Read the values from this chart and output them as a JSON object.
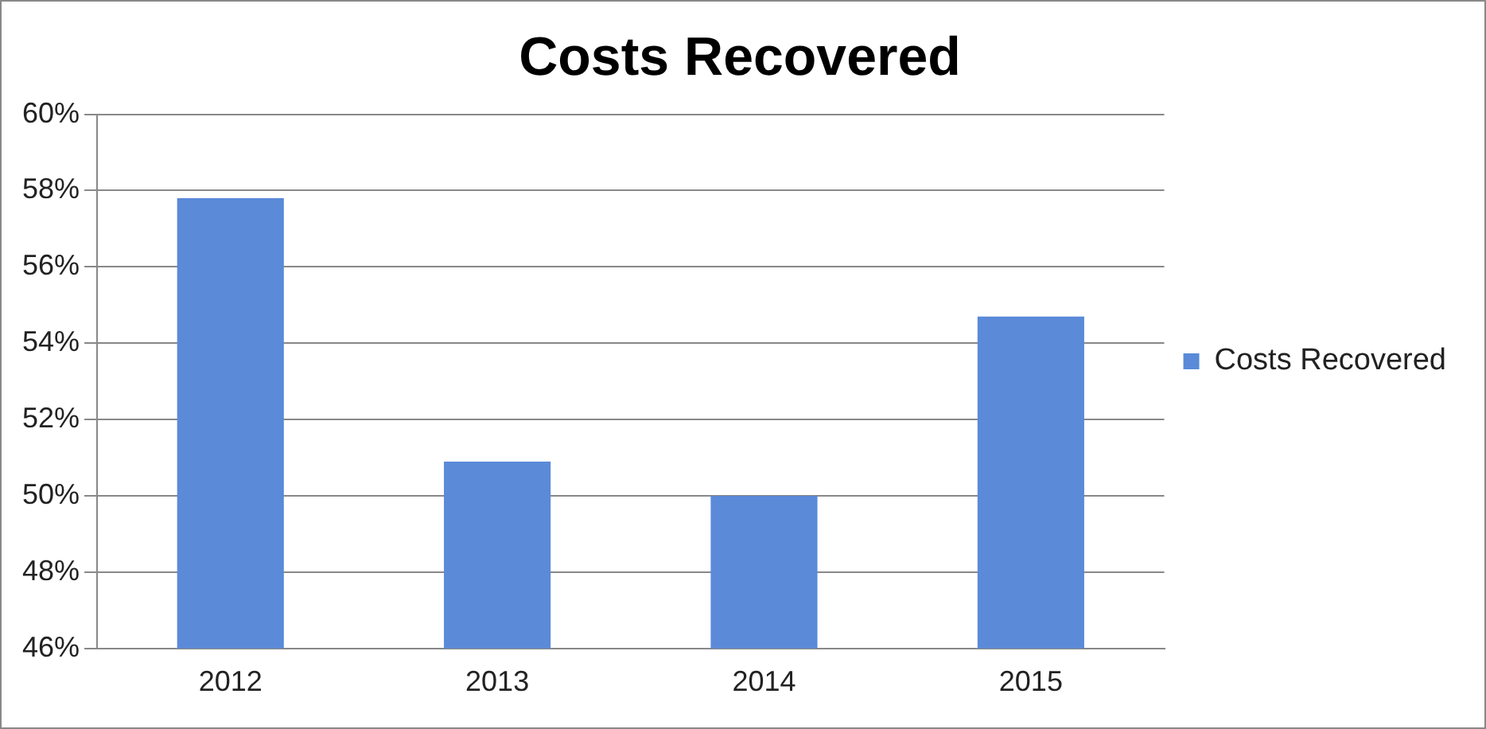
{
  "chart_data": {
    "type": "bar",
    "title": "Costs Recovered",
    "categories": [
      "2012",
      "2013",
      "2014",
      "2015"
    ],
    "series": [
      {
        "name": "Costs Recovered",
        "color": "#5a8ad8",
        "values": [
          57.8,
          50.9,
          50.0,
          54.7
        ]
      }
    ],
    "ylim": [
      46,
      60
    ],
    "yticks": [
      {
        "value": 46,
        "label": "46%"
      },
      {
        "value": 48,
        "label": "48%"
      },
      {
        "value": 50,
        "label": "50%"
      },
      {
        "value": 52,
        "label": "52%"
      },
      {
        "value": 54,
        "label": "54%"
      },
      {
        "value": 56,
        "label": "56%"
      },
      {
        "value": 58,
        "label": "58%"
      },
      {
        "value": 60,
        "label": "60%"
      }
    ],
    "grid": "y",
    "legend": "right"
  }
}
